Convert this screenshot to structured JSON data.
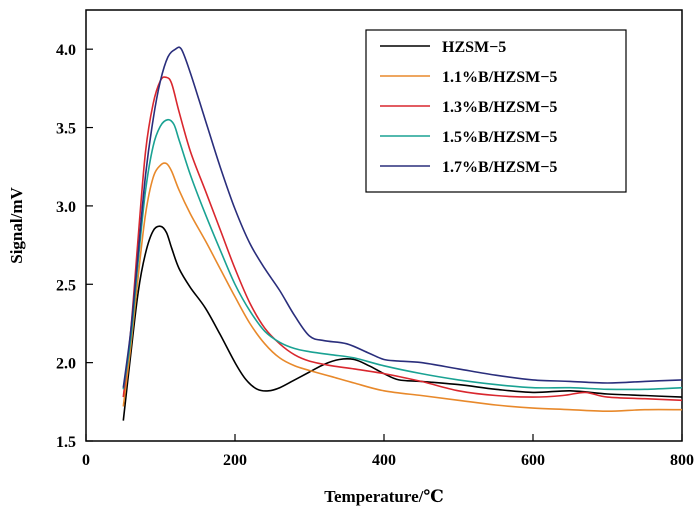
{
  "chart_data": {
    "type": "line",
    "title": "",
    "xlabel": "Temperature/℃",
    "ylabel": "Signal/mV",
    "xlim": [
      0,
      800
    ],
    "ylim": [
      1.5,
      4.25
    ],
    "x_ticks": [
      0,
      200,
      400,
      600,
      800
    ],
    "x_tick_labels": [
      "0",
      "200",
      "400",
      "600",
      "800"
    ],
    "y_ticks": [
      1.5,
      2.0,
      2.5,
      3.0,
      3.5,
      4.0
    ],
    "y_tick_labels": [
      "1.5",
      "2.0",
      "2.5",
      "3.0",
      "3.5",
      "4.0"
    ],
    "grid": false,
    "legend_position": "top-right",
    "series": [
      {
        "name": "HZSM−5",
        "color": "#000000",
        "points": [
          [
            50,
            1.63
          ],
          [
            60,
            2.05
          ],
          [
            70,
            2.45
          ],
          [
            80,
            2.7
          ],
          [
            90,
            2.84
          ],
          [
            100,
            2.87
          ],
          [
            108,
            2.83
          ],
          [
            115,
            2.73
          ],
          [
            125,
            2.6
          ],
          [
            140,
            2.48
          ],
          [
            160,
            2.35
          ],
          [
            180,
            2.18
          ],
          [
            200,
            2.0
          ],
          [
            215,
            1.89
          ],
          [
            230,
            1.83
          ],
          [
            245,
            1.82
          ],
          [
            260,
            1.84
          ],
          [
            280,
            1.89
          ],
          [
            300,
            1.94
          ],
          [
            320,
            1.99
          ],
          [
            340,
            2.02
          ],
          [
            360,
            2.02
          ],
          [
            380,
            1.98
          ],
          [
            400,
            1.93
          ],
          [
            420,
            1.89
          ],
          [
            450,
            1.88
          ],
          [
            500,
            1.86
          ],
          [
            550,
            1.83
          ],
          [
            600,
            1.81
          ],
          [
            650,
            1.82
          ],
          [
            700,
            1.8
          ],
          [
            750,
            1.79
          ],
          [
            800,
            1.78
          ]
        ]
      },
      {
        "name": "1.1%B/HZSM−5",
        "color": "#E8892B",
        "points": [
          [
            50,
            1.72
          ],
          [
            60,
            2.1
          ],
          [
            70,
            2.55
          ],
          [
            80,
            2.95
          ],
          [
            90,
            3.18
          ],
          [
            100,
            3.26
          ],
          [
            108,
            3.27
          ],
          [
            115,
            3.22
          ],
          [
            125,
            3.1
          ],
          [
            140,
            2.95
          ],
          [
            160,
            2.78
          ],
          [
            180,
            2.6
          ],
          [
            200,
            2.42
          ],
          [
            220,
            2.25
          ],
          [
            240,
            2.12
          ],
          [
            260,
            2.03
          ],
          [
            280,
            1.98
          ],
          [
            300,
            1.95
          ],
          [
            330,
            1.91
          ],
          [
            360,
            1.87
          ],
          [
            400,
            1.82
          ],
          [
            450,
            1.79
          ],
          [
            500,
            1.76
          ],
          [
            550,
            1.73
          ],
          [
            600,
            1.71
          ],
          [
            650,
            1.7
          ],
          [
            700,
            1.69
          ],
          [
            750,
            1.7
          ],
          [
            800,
            1.7
          ]
        ]
      },
      {
        "name": "1.3%B/HZSM−5",
        "color": "#D9272E",
        "points": [
          [
            50,
            1.78
          ],
          [
            60,
            2.2
          ],
          [
            70,
            2.8
          ],
          [
            80,
            3.35
          ],
          [
            90,
            3.65
          ],
          [
            100,
            3.8
          ],
          [
            108,
            3.82
          ],
          [
            115,
            3.78
          ],
          [
            125,
            3.6
          ],
          [
            140,
            3.35
          ],
          [
            160,
            3.1
          ],
          [
            180,
            2.85
          ],
          [
            200,
            2.6
          ],
          [
            220,
            2.38
          ],
          [
            240,
            2.22
          ],
          [
            260,
            2.12
          ],
          [
            280,
            2.05
          ],
          [
            300,
            2.01
          ],
          [
            330,
            1.98
          ],
          [
            360,
            1.96
          ],
          [
            400,
            1.93
          ],
          [
            450,
            1.88
          ],
          [
            500,
            1.82
          ],
          [
            550,
            1.79
          ],
          [
            600,
            1.78
          ],
          [
            640,
            1.79
          ],
          [
            670,
            1.81
          ],
          [
            700,
            1.78
          ],
          [
            750,
            1.77
          ],
          [
            800,
            1.76
          ]
        ]
      },
      {
        "name": "1.5%B/HZSM−5",
        "color": "#1AA293",
        "points": [
          [
            50,
            1.83
          ],
          [
            60,
            2.15
          ],
          [
            70,
            2.65
          ],
          [
            80,
            3.1
          ],
          [
            90,
            3.38
          ],
          [
            100,
            3.51
          ],
          [
            110,
            3.55
          ],
          [
            118,
            3.52
          ],
          [
            125,
            3.42
          ],
          [
            140,
            3.2
          ],
          [
            160,
            2.95
          ],
          [
            180,
            2.72
          ],
          [
            200,
            2.5
          ],
          [
            220,
            2.33
          ],
          [
            240,
            2.2
          ],
          [
            260,
            2.13
          ],
          [
            280,
            2.09
          ],
          [
            300,
            2.07
          ],
          [
            330,
            2.05
          ],
          [
            360,
            2.03
          ],
          [
            400,
            1.98
          ],
          [
            450,
            1.93
          ],
          [
            500,
            1.89
          ],
          [
            550,
            1.86
          ],
          [
            600,
            1.84
          ],
          [
            650,
            1.84
          ],
          [
            700,
            1.83
          ],
          [
            750,
            1.83
          ],
          [
            800,
            1.84
          ]
        ]
      },
      {
        "name": "1.7%B/HZSM−5",
        "color": "#2A2E7C",
        "points": [
          [
            50,
            1.84
          ],
          [
            60,
            2.2
          ],
          [
            70,
            2.7
          ],
          [
            80,
            3.2
          ],
          [
            90,
            3.55
          ],
          [
            100,
            3.8
          ],
          [
            110,
            3.95
          ],
          [
            120,
            4.0
          ],
          [
            128,
            4.0
          ],
          [
            140,
            3.85
          ],
          [
            160,
            3.55
          ],
          [
            180,
            3.25
          ],
          [
            200,
            2.98
          ],
          [
            220,
            2.76
          ],
          [
            240,
            2.6
          ],
          [
            260,
            2.46
          ],
          [
            280,
            2.3
          ],
          [
            300,
            2.17
          ],
          [
            320,
            2.14
          ],
          [
            350,
            2.12
          ],
          [
            380,
            2.06
          ],
          [
            400,
            2.02
          ],
          [
            420,
            2.01
          ],
          [
            450,
            2.0
          ],
          [
            500,
            1.96
          ],
          [
            550,
            1.92
          ],
          [
            600,
            1.89
          ],
          [
            650,
            1.88
          ],
          [
            700,
            1.87
          ],
          [
            750,
            1.88
          ],
          [
            800,
            1.89
          ]
        ]
      }
    ]
  }
}
